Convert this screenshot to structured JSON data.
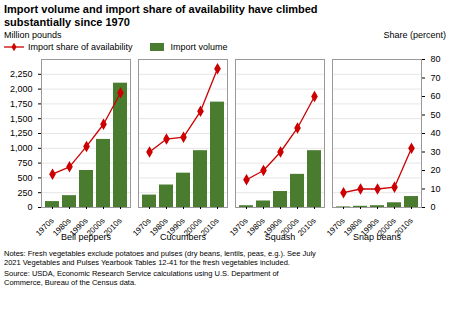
{
  "chart_data": {
    "type": "bar",
    "title": "Import volume and import share of availability have climbed\nsubstantially since 1970",
    "ylabel": "Million pounds",
    "y2label": "Share (percent)",
    "groups": [
      "Bell peppers",
      "Cucumbers",
      "Squash",
      "Snap beans"
    ],
    "categories": [
      "1970s",
      "1980s",
      "1990s",
      "2000s",
      "2010s"
    ],
    "series": [
      {
        "name": "Import share of availability",
        "type": "line",
        "axis": "y2",
        "color": "#cc0000",
        "marker": "diamond",
        "values": [
          [
            18,
            22,
            33,
            45,
            62
          ],
          [
            30,
            37,
            38,
            52,
            75
          ],
          [
            15,
            20,
            30,
            43,
            60
          ],
          [
            8,
            10,
            10,
            11,
            32
          ]
        ]
      },
      {
        "name": "Import volume",
        "type": "bar",
        "color": "#4a7c2f",
        "values": [
          [
            100,
            200,
            625,
            1150,
            2100
          ],
          [
            210,
            380,
            580,
            960,
            1780
          ],
          [
            30,
            110,
            270,
            560,
            960
          ],
          [
            10,
            20,
            30,
            80,
            185
          ]
        ]
      }
    ],
    "ylim": [
      0,
      2500
    ],
    "yticks": [
      0,
      250,
      500,
      750,
      {
        "value": 1000,
        "label": "1,000"
      },
      {
        "value": 1250,
        "label": "1,250"
      },
      {
        "value": 1500,
        "label": "1,500"
      },
      {
        "value": 1750,
        "label": "1,750"
      },
      {
        "value": 2000,
        "label": "2,000"
      },
      {
        "value": 2250,
        "label": "2,250"
      }
    ],
    "y2lim": [
      0,
      80
    ],
    "y2ticks": [
      0,
      10,
      20,
      30,
      40,
      50,
      60,
      70,
      80
    ],
    "grid": true,
    "legend": "upper left",
    "notes": "Notes: Fresh vegetables exclude potatoes and pulses (dry beans, lentils, peas, e.g.). See July\n2021 Vegetables and Pulses Yearbook Tables 12-41 for the fresh vegetables included.",
    "source": "Source: USDA, Economic Research Service calculations using U.S. Department of\nCommerce, Bureau of the Census data."
  }
}
